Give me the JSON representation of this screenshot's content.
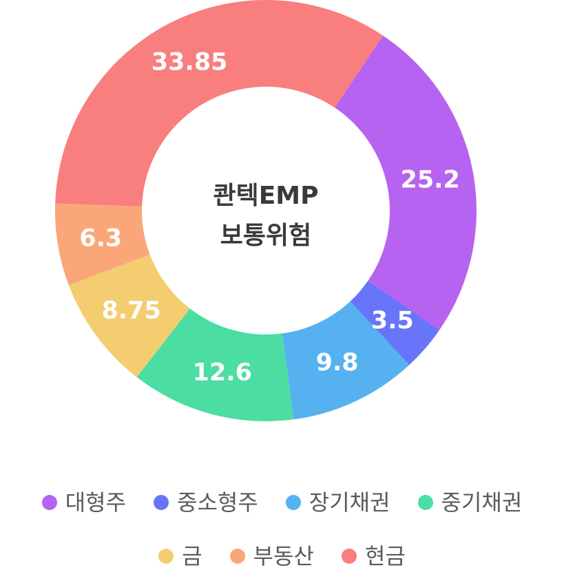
{
  "chart_data": {
    "type": "pie",
    "donut": true,
    "center_text": [
      "콴텍EMP",
      "보통위험"
    ],
    "categories": [
      "대형주",
      "중소형주",
      "장기채권",
      "중기채권",
      "금",
      "부동산",
      "현금"
    ],
    "values": [
      25.2,
      3.5,
      9.8,
      12.6,
      8.75,
      6.3,
      33.85
    ],
    "value_labels": [
      "25.2",
      "3.5",
      "9.8",
      "12.6",
      "8.75",
      "6.3",
      "33.85"
    ],
    "colors": [
      "#B563F0",
      "#6874FA",
      "#55B1EF",
      "#4BDDA2",
      "#F3CD70",
      "#FBA679",
      "#F97E7E"
    ],
    "legend_placement": "bottom"
  }
}
